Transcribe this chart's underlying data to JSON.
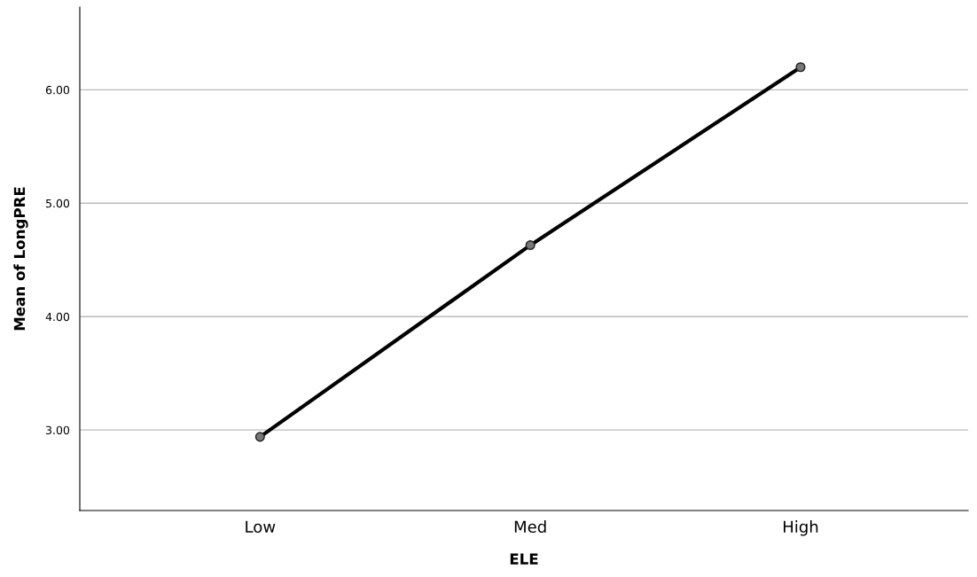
{
  "chart_data": {
    "type": "line",
    "xlabel": "ELE",
    "ylabel": "Mean of LongPRE",
    "categories": [
      "Low",
      "Med",
      "High"
    ],
    "series": [
      {
        "color": "#000000",
        "values": [
          2.94,
          4.63,
          6.2
        ]
      }
    ],
    "ylim": [
      2.29,
      6.73
    ],
    "yticks": [
      {
        "value": 3,
        "label": "3.00"
      },
      {
        "value": 4,
        "label": "4.00"
      },
      {
        "value": 5,
        "label": "5.00"
      },
      {
        "value": 6,
        "label": "6.00"
      }
    ],
    "grid": "y",
    "marker": "circle",
    "line_style": "solid"
  }
}
